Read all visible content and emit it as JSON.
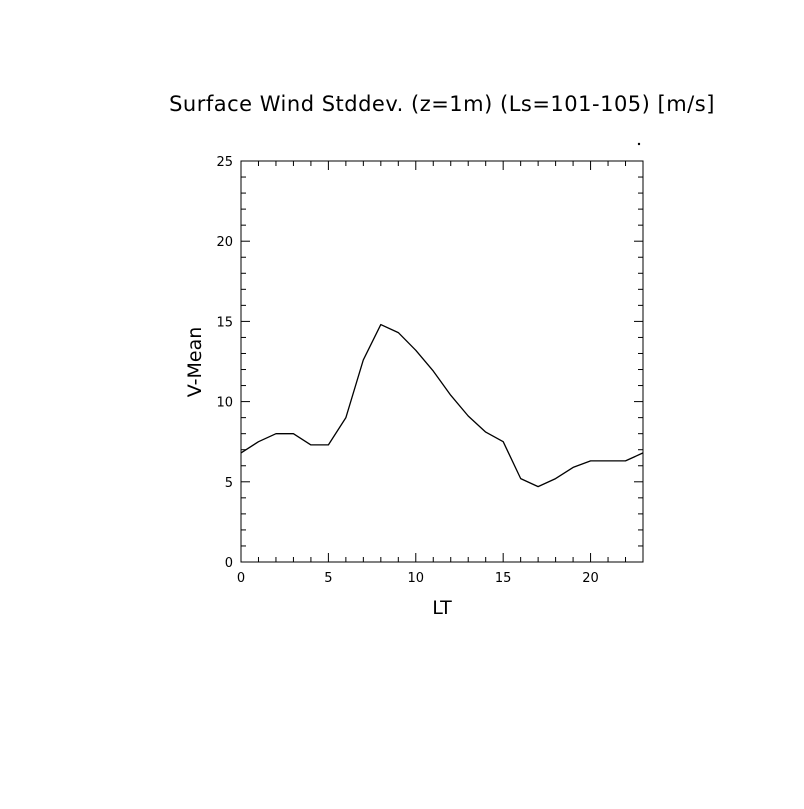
{
  "chart_data": {
    "type": "line",
    "title": "Surface Wind Stddev. (z=1m) (Ls=101-105) [m/s]",
    "xlabel": "LT",
    "ylabel": "V-Mean",
    "xlim": [
      0,
      23
    ],
    "ylim": [
      0,
      25
    ],
    "xticks": [
      "0",
      "5",
      "10",
      "15",
      "20"
    ],
    "yticks": [
      "0",
      "5",
      "10",
      "15",
      "20",
      "25"
    ],
    "grid": false,
    "line_color": "#000000",
    "series": [
      {
        "x": [
          0,
          1,
          2,
          3,
          4,
          5,
          6,
          7,
          8,
          9,
          10,
          11,
          12,
          13,
          14,
          15,
          16,
          17,
          18,
          19,
          20,
          21,
          22,
          23
        ],
        "values": [
          6.8,
          7.5,
          8.0,
          8.0,
          7.3,
          7.3,
          9.0,
          12.6,
          14.8,
          14.3,
          13.2,
          11.9,
          10.4,
          9.1,
          8.1,
          7.5,
          5.2,
          4.7,
          5.2,
          5.9,
          6.3,
          6.3,
          6.3,
          6.8
        ]
      }
    ]
  }
}
